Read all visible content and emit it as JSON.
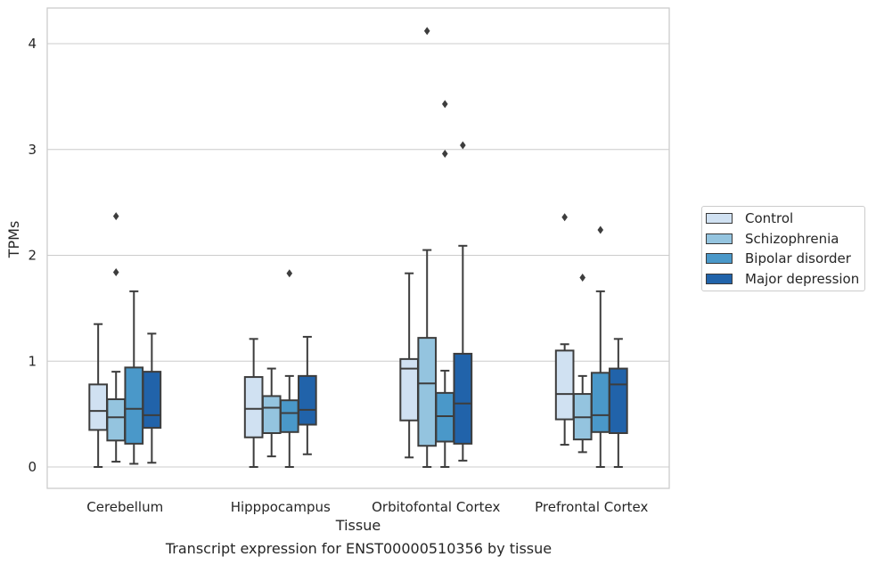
{
  "chart_data": {
    "type": "box",
    "caption": "Transcript expression for ENST00000510356 by tissue",
    "xlabel": "Tissue",
    "ylabel": "TPMs",
    "ylim": [
      -0.2,
      4.35
    ],
    "yticks": [
      0,
      1,
      2,
      3,
      4
    ],
    "grid": "horizontal",
    "legend_position": "right",
    "categories": [
      "Cerebellum",
      "Hipppocampus",
      "Orbitofontal Cortex",
      "Prefrontal Cortex"
    ],
    "series": [
      {
        "name": "Control",
        "color": "#d0e1f2",
        "boxes": [
          {
            "whislo": 0.0,
            "q1": 0.35,
            "med": 0.53,
            "q3": 0.78,
            "whishi": 1.35,
            "fliers": []
          },
          {
            "whislo": 0.0,
            "q1": 0.28,
            "med": 0.55,
            "q3": 0.85,
            "whishi": 1.21,
            "fliers": []
          },
          {
            "whislo": 0.09,
            "q1": 0.44,
            "med": 0.93,
            "q3": 1.02,
            "whishi": 1.83,
            "fliers": []
          },
          {
            "whislo": 0.21,
            "q1": 0.45,
            "med": 0.69,
            "q3": 1.1,
            "whishi": 1.16,
            "fliers": [
              2.36
            ]
          }
        ]
      },
      {
        "name": "Schizophrenia",
        "color": "#94c4df",
        "boxes": [
          {
            "whislo": 0.05,
            "q1": 0.25,
            "med": 0.47,
            "q3": 0.64,
            "whishi": 0.9,
            "fliers": [
              1.84,
              2.37
            ]
          },
          {
            "whislo": 0.1,
            "q1": 0.32,
            "med": 0.56,
            "q3": 0.67,
            "whishi": 0.93,
            "fliers": []
          },
          {
            "whislo": 0.0,
            "q1": 0.2,
            "med": 0.79,
            "q3": 1.22,
            "whishi": 2.05,
            "fliers": [
              4.12
            ]
          },
          {
            "whislo": 0.14,
            "q1": 0.26,
            "med": 0.47,
            "q3": 0.69,
            "whishi": 0.86,
            "fliers": [
              1.79
            ]
          }
        ]
      },
      {
        "name": "Bipolar disorder",
        "color": "#4a98c9",
        "boxes": [
          {
            "whislo": 0.03,
            "q1": 0.22,
            "med": 0.55,
            "q3": 0.94,
            "whishi": 1.66,
            "fliers": []
          },
          {
            "whislo": 0.0,
            "q1": 0.33,
            "med": 0.51,
            "q3": 0.63,
            "whishi": 0.86,
            "fliers": [
              1.83
            ]
          },
          {
            "whislo": 0.0,
            "q1": 0.24,
            "med": 0.48,
            "q3": 0.7,
            "whishi": 0.91,
            "fliers": [
              2.96,
              3.43
            ]
          },
          {
            "whislo": 0.0,
            "q1": 0.33,
            "med": 0.49,
            "q3": 0.89,
            "whishi": 1.66,
            "fliers": [
              2.24
            ]
          }
        ]
      },
      {
        "name": "Major depression",
        "color": "#2163aa",
        "boxes": [
          {
            "whislo": 0.04,
            "q1": 0.37,
            "med": 0.49,
            "q3": 0.9,
            "whishi": 1.26,
            "fliers": []
          },
          {
            "whislo": 0.12,
            "q1": 0.4,
            "med": 0.54,
            "q3": 0.86,
            "whishi": 1.23,
            "fliers": []
          },
          {
            "whislo": 0.06,
            "q1": 0.22,
            "med": 0.6,
            "q3": 1.07,
            "whishi": 2.09,
            "fliers": [
              3.04
            ]
          },
          {
            "whislo": 0.0,
            "q1": 0.32,
            "med": 0.78,
            "q3": 0.93,
            "whishi": 1.21,
            "fliers": []
          }
        ]
      }
    ]
  }
}
